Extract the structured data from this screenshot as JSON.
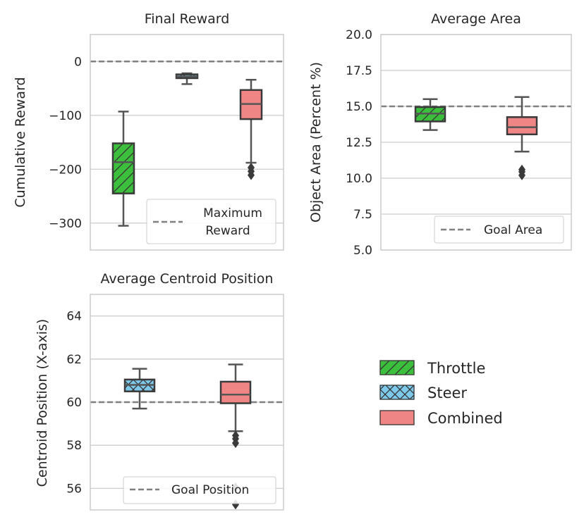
{
  "colors": {
    "throttle": "#3cbf3c",
    "steer": "#7ec8e9",
    "combined": "#ef8585",
    "reference_line": "#808080",
    "grid": "#cccccc",
    "box_edge": "#3a3a3a",
    "whisker": "#555555"
  },
  "legend": {
    "entries": [
      {
        "label": "Throttle",
        "color": "#3cbf3c",
        "hatch": "diagonal"
      },
      {
        "label": "Steer",
        "color": "#7ec8e9",
        "hatch": "cross"
      },
      {
        "label": "Combined",
        "color": "#ef8585",
        "hatch": "none"
      }
    ]
  },
  "chart_data": [
    {
      "type": "box",
      "title": "Final Reward",
      "ylabel": "Cumulative Reward",
      "ylim": [
        -350,
        50
      ],
      "yticks": [
        0,
        -100,
        -200,
        -300
      ],
      "ytick_labels": [
        "0",
        "−100",
        "−200",
        "−300"
      ],
      "reference": {
        "value": 0,
        "label": [
          "Maximum",
          "Reward"
        ]
      },
      "legend_position": "lower-right",
      "grid": true,
      "boxes": [
        {
          "series": "Throttle",
          "slot": 0,
          "whislo": -305,
          "q1": -245,
          "med": -187,
          "q3": -152,
          "whishi": -93,
          "fliers": []
        },
        {
          "series": "Steer",
          "slot": 1,
          "whislo": -42,
          "q1": -31,
          "med": -28,
          "q3": -24,
          "whishi": -22,
          "fliers": []
        },
        {
          "series": "Combined",
          "slot": 2,
          "whislo": -188,
          "q1": -107,
          "med": -79,
          "q3": -53,
          "whishi": -34,
          "fliers": [
            -197,
            -204,
            -211
          ]
        }
      ]
    },
    {
      "type": "box",
      "title": "Average Area",
      "ylabel": "Object Area (Percent %)",
      "ylim": [
        5.0,
        20.0
      ],
      "yticks": [
        5.0,
        7.5,
        10.0,
        12.5,
        15.0,
        17.5,
        20.0
      ],
      "ytick_labels": [
        "5.0",
        "7.5",
        "10.0",
        "12.5",
        "15.0",
        "17.5",
        "20.0"
      ],
      "reference": {
        "value": 15.0,
        "label": [
          "Goal Area"
        ]
      },
      "legend_position": "lower-right",
      "grid": true,
      "boxes": [
        {
          "series": "Throttle",
          "slot": 0,
          "whislo": 13.35,
          "q1": 13.95,
          "med": 14.5,
          "q3": 14.95,
          "whishi": 15.5,
          "fliers": []
        },
        {
          "series": "Combined",
          "slot": 1,
          "whislo": 11.85,
          "q1": 13.05,
          "med": 13.55,
          "q3": 14.25,
          "whishi": 15.65,
          "fliers": [
            10.2,
            10.45,
            10.6
          ]
        }
      ]
    },
    {
      "type": "box",
      "title": "Average Centroid Position",
      "ylabel": "Centroid Position (X-axis)",
      "ylim": [
        55,
        65
      ],
      "yticks": [
        56,
        58,
        60,
        62,
        64
      ],
      "ytick_labels": [
        "56",
        "58",
        "60",
        "62",
        "64"
      ],
      "reference": {
        "value": 60,
        "label": [
          "Goal Position"
        ]
      },
      "legend_position": "lower-right",
      "grid": true,
      "boxes": [
        {
          "series": "Steer",
          "slot": 0,
          "whislo": 59.7,
          "q1": 60.5,
          "med": 60.8,
          "q3": 61.05,
          "whishi": 61.55,
          "fliers": []
        },
        {
          "series": "Combined",
          "slot": 1,
          "whislo": 58.65,
          "q1": 59.95,
          "med": 60.35,
          "q3": 60.95,
          "whishi": 61.75,
          "fliers": [
            58.1,
            58.3,
            58.45,
            56.05,
            55.25
          ]
        }
      ]
    }
  ]
}
